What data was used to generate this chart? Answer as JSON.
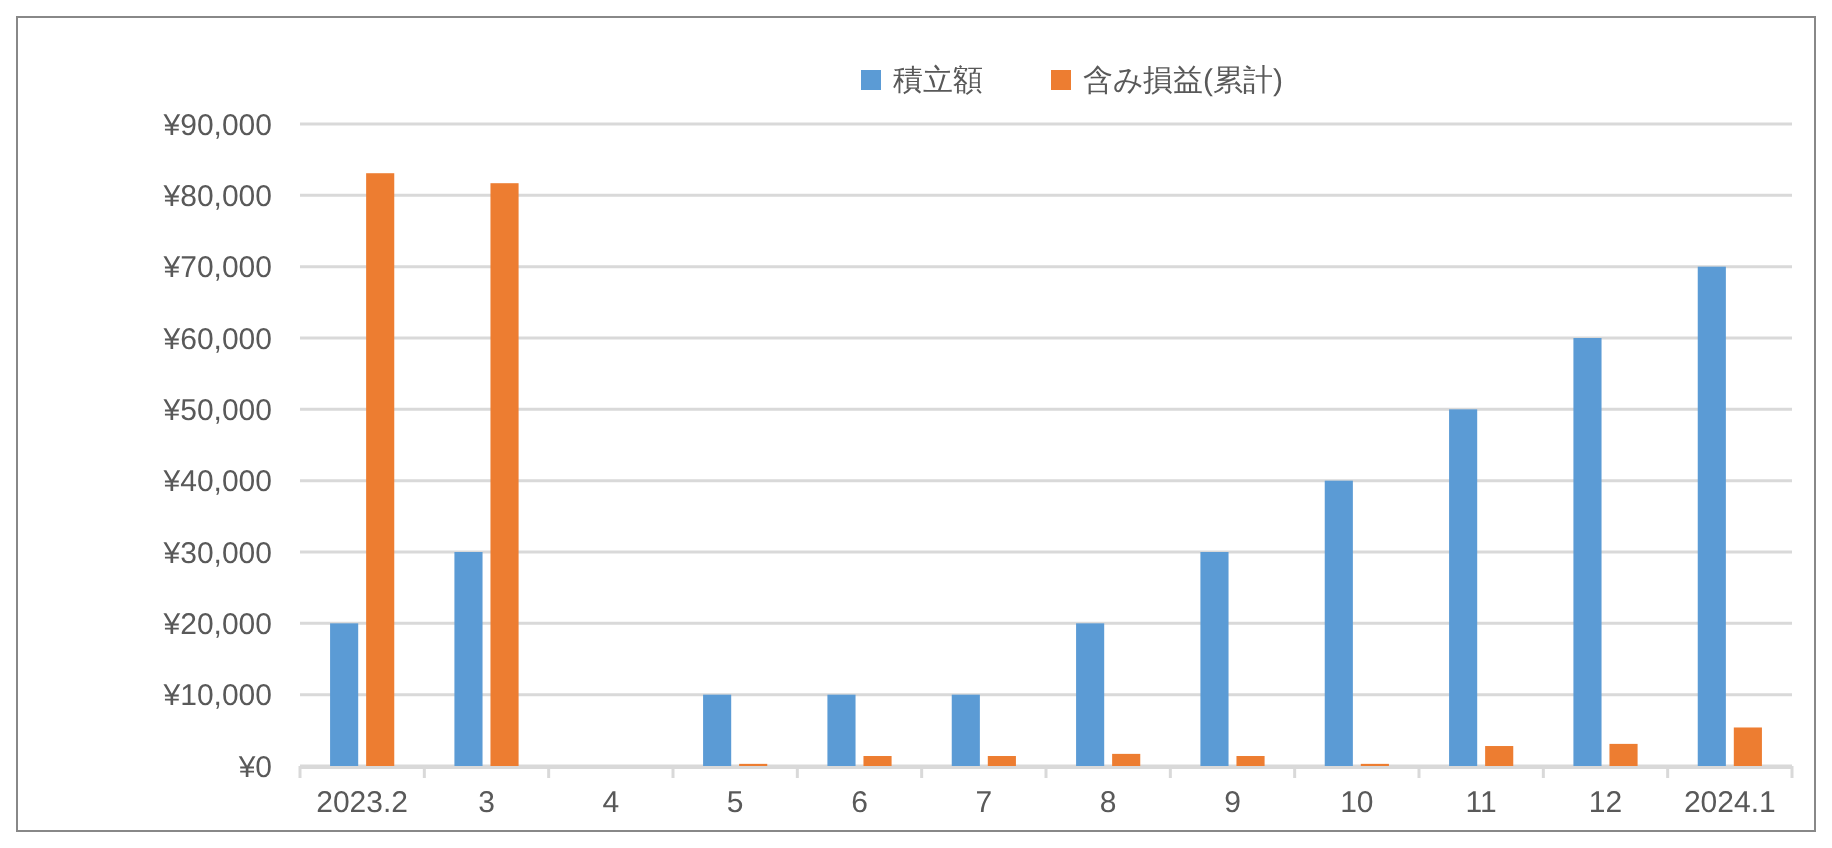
{
  "chart_data": {
    "type": "bar",
    "categories": [
      "2023.2",
      "3",
      "4",
      "5",
      "6",
      "7",
      "8",
      "9",
      "10",
      "11",
      "12",
      "2024.1"
    ],
    "series": [
      {
        "name": "積立額",
        "color": "#5b9bd5",
        "values": [
          20000,
          30000,
          null,
          10000,
          10000,
          10000,
          20000,
          30000,
          40000,
          50000,
          60000,
          70000
        ]
      },
      {
        "name": "含み損益(累計)",
        "color": "#ed7d31",
        "values": [
          83100,
          81700,
          null,
          300,
          1400,
          1400,
          1700,
          1400,
          300,
          2800,
          3100,
          5400
        ]
      }
    ],
    "ylim": [
      0,
      90000
    ],
    "yticks": [
      {
        "value": 0,
        "label": "¥0"
      },
      {
        "value": 10000,
        "label": "¥10,000"
      },
      {
        "value": 20000,
        "label": "¥20,000"
      },
      {
        "value": 30000,
        "label": "¥30,000"
      },
      {
        "value": 40000,
        "label": "¥40,000"
      },
      {
        "value": 50000,
        "label": "¥50,000"
      },
      {
        "value": 60000,
        "label": "¥60,000"
      },
      {
        "value": 70000,
        "label": "¥70,000"
      },
      {
        "value": 80000,
        "label": "¥80,000"
      },
      {
        "value": 90000,
        "label": "¥90,000"
      }
    ],
    "grid": "y",
    "legend": "top"
  }
}
